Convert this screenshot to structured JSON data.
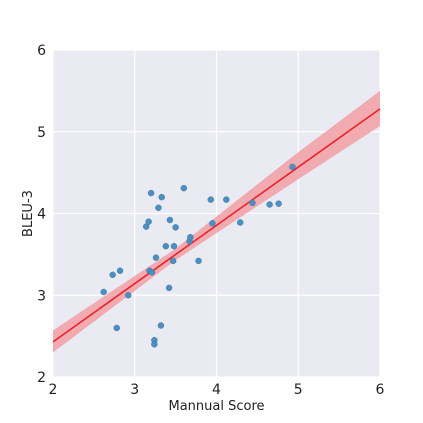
{
  "chart_data": {
    "type": "scatter",
    "title": "",
    "xlabel": "Mannual Score",
    "ylabel": "BLEU-3",
    "xlim": [
      2,
      6
    ],
    "ylim": [
      2,
      6
    ],
    "xticks": [
      "2",
      "3",
      "4",
      "5",
      "6"
    ],
    "yticks": [
      "2",
      "3",
      "4",
      "5",
      "6"
    ],
    "grid": true,
    "legend": "none",
    "background": "#eaeaf2",
    "point_color": "#4c8fc0",
    "line_color": "#e8222b",
    "band_color": "#f2a0a4",
    "series": [
      {
        "points": [
          {
            "x": 2.62,
            "y": 3.04
          },
          {
            "x": 2.73,
            "y": 3.25
          },
          {
            "x": 2.78,
            "y": 2.6
          },
          {
            "x": 2.82,
            "y": 3.3
          },
          {
            "x": 2.92,
            "y": 3.0
          },
          {
            "x": 3.14,
            "y": 3.84
          },
          {
            "x": 3.17,
            "y": 3.9
          },
          {
            "x": 3.18,
            "y": 3.3
          },
          {
            "x": 3.2,
            "y": 4.25
          },
          {
            "x": 3.21,
            "y": 3.28
          },
          {
            "x": 3.24,
            "y": 2.45
          },
          {
            "x": 3.24,
            "y": 2.4
          },
          {
            "x": 3.26,
            "y": 3.46
          },
          {
            "x": 3.29,
            "y": 4.07
          },
          {
            "x": 3.32,
            "y": 2.63
          },
          {
            "x": 3.33,
            "y": 4.2
          },
          {
            "x": 3.38,
            "y": 3.6
          },
          {
            "x": 3.42,
            "y": 3.09
          },
          {
            "x": 3.43,
            "y": 3.92
          },
          {
            "x": 3.47,
            "y": 3.42
          },
          {
            "x": 3.48,
            "y": 3.6
          },
          {
            "x": 3.5,
            "y": 3.83
          },
          {
            "x": 3.6,
            "y": 4.31
          },
          {
            "x": 3.67,
            "y": 3.66
          },
          {
            "x": 3.68,
            "y": 3.71
          },
          {
            "x": 3.78,
            "y": 3.42
          },
          {
            "x": 3.93,
            "y": 4.17
          },
          {
            "x": 3.95,
            "y": 3.88
          },
          {
            "x": 4.12,
            "y": 4.17
          },
          {
            "x": 4.29,
            "y": 3.89
          },
          {
            "x": 4.44,
            "y": 4.13
          },
          {
            "x": 4.65,
            "y": 4.11
          },
          {
            "x": 4.76,
            "y": 4.12
          },
          {
            "x": 4.93,
            "y": 4.57
          }
        ]
      }
    ],
    "regression": {
      "line": [
        {
          "x": 2.0,
          "y": 2.43
        },
        {
          "x": 6.0,
          "y": 5.28
        }
      ],
      "band": [
        {
          "x": 2.0,
          "lo": 2.3,
          "hi": 2.57
        },
        {
          "x": 3.5,
          "lo": 3.43,
          "hi": 3.57
        },
        {
          "x": 5.0,
          "lo": 4.42,
          "hi": 4.75
        },
        {
          "x": 6.0,
          "lo": 5.07,
          "hi": 5.5
        }
      ]
    }
  }
}
